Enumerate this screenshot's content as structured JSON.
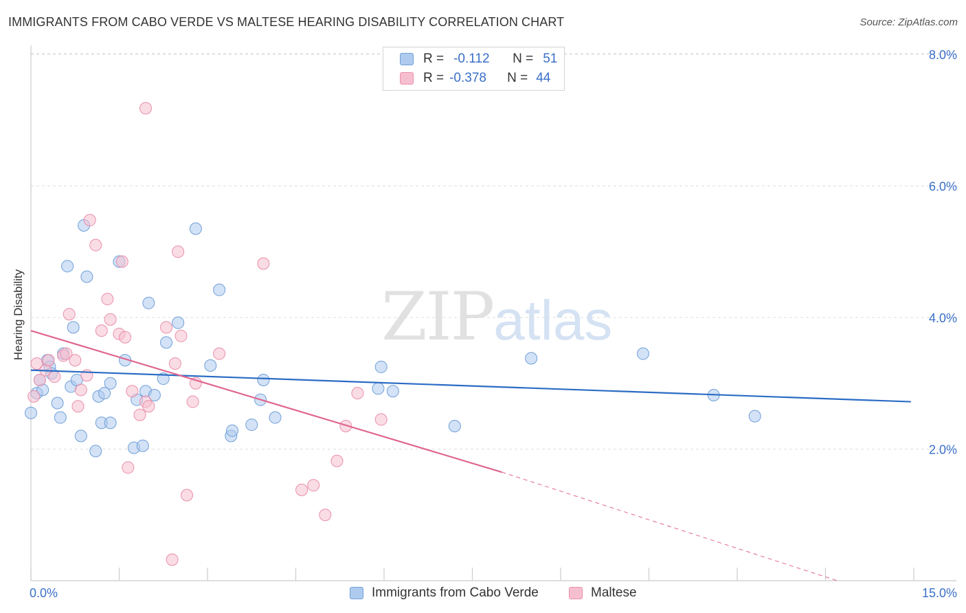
{
  "header": {
    "title": "IMMIGRANTS FROM CABO VERDE VS MALTESE HEARING DISABILITY CORRELATION CHART",
    "source": "Source: ZipAtlas.com"
  },
  "legend": {
    "rows": [
      {
        "r_label": "R =",
        "r_value": "-0.112",
        "n_label": "N =",
        "n_value": "51"
      },
      {
        "r_label": "R =",
        "r_value": "-0.378",
        "n_label": "N =",
        "n_value": "44"
      }
    ]
  },
  "watermark": {
    "zip": "ZIP",
    "atlas": "atlas"
  },
  "colors": {
    "blue_fill": "#aecbef",
    "blue_stroke": "#6f9fd8",
    "blue_line": "#2a6cc4",
    "pink_fill": "#f6bfd0",
    "pink_stroke": "#e98faa",
    "pink_line": "#e0668f",
    "tick_label": "#3a6fc8",
    "grid": "#dddddd"
  },
  "chart_data": {
    "type": "scatter",
    "title": "IMMIGRANTS FROM CABO VERDE VS MALTESE HEARING DISABILITY CORRELATION CHART",
    "xlabel": "",
    "ylabel": "Hearing Disability",
    "xlim": [
      0,
      15
    ],
    "ylim": [
      0,
      8.3
    ],
    "x_tick_labels": [
      "0.0%",
      "15.0%"
    ],
    "y_ticks": [
      2,
      4,
      6,
      8
    ],
    "y_tick_labels": [
      "2.0%",
      "4.0%",
      "6.0%",
      "8.0%"
    ],
    "grid": true,
    "legend_position": "top-center",
    "series": [
      {
        "name": "Immigrants from Cabo Verde",
        "color": "#aecbef",
        "r": -0.112,
        "n": 51,
        "trend": {
          "x": [
            0.0,
            14.95
          ],
          "y": [
            3.2,
            2.72
          ]
        },
        "points": [
          [
            0.0,
            2.55
          ],
          [
            0.1,
            2.85
          ],
          [
            0.15,
            3.05
          ],
          [
            0.2,
            2.9
          ],
          [
            0.28,
            3.35
          ],
          [
            0.32,
            3.25
          ],
          [
            0.35,
            3.15
          ],
          [
            0.45,
            2.7
          ],
          [
            0.5,
            2.48
          ],
          [
            0.55,
            3.45
          ],
          [
            0.62,
            4.78
          ],
          [
            0.68,
            2.95
          ],
          [
            0.72,
            3.85
          ],
          [
            0.78,
            3.05
          ],
          [
            0.85,
            2.2
          ],
          [
            0.9,
            5.4
          ],
          [
            0.95,
            4.62
          ],
          [
            1.1,
            1.97
          ],
          [
            1.15,
            2.8
          ],
          [
            1.2,
            2.4
          ],
          [
            1.25,
            2.85
          ],
          [
            1.35,
            2.4
          ],
          [
            1.35,
            3.0
          ],
          [
            1.5,
            4.85
          ],
          [
            1.6,
            3.35
          ],
          [
            1.75,
            2.02
          ],
          [
            1.8,
            2.75
          ],
          [
            1.9,
            2.05
          ],
          [
            1.95,
            2.88
          ],
          [
            2.0,
            4.22
          ],
          [
            2.1,
            2.82
          ],
          [
            2.25,
            3.07
          ],
          [
            2.3,
            3.62
          ],
          [
            2.5,
            3.92
          ],
          [
            2.8,
            5.35
          ],
          [
            3.05,
            3.27
          ],
          [
            3.2,
            4.42
          ],
          [
            3.4,
            2.2
          ],
          [
            3.42,
            2.28
          ],
          [
            3.75,
            2.37
          ],
          [
            3.9,
            2.75
          ],
          [
            3.95,
            3.05
          ],
          [
            4.15,
            2.48
          ],
          [
            5.9,
            2.92
          ],
          [
            5.95,
            3.25
          ],
          [
            6.15,
            2.88
          ],
          [
            7.2,
            2.35
          ],
          [
            8.5,
            3.38
          ],
          [
            10.4,
            3.45
          ],
          [
            11.6,
            2.82
          ],
          [
            12.3,
            2.5
          ]
        ]
      },
      {
        "name": "Maltese",
        "color": "#f6bfd0",
        "r": -0.378,
        "n": 44,
        "trend": {
          "x": [
            0.0,
            8.0
          ],
          "y": [
            3.8,
            1.65
          ]
        },
        "trend_dashed": {
          "x": [
            8.0,
            13.7
          ],
          "y": [
            1.65,
            0.0
          ]
        },
        "points": [
          [
            0.05,
            2.8
          ],
          [
            0.1,
            3.3
          ],
          [
            0.15,
            3.05
          ],
          [
            0.25,
            3.2
          ],
          [
            0.3,
            3.35
          ],
          [
            0.4,
            3.1
          ],
          [
            0.55,
            3.42
          ],
          [
            0.6,
            3.45
          ],
          [
            0.65,
            4.05
          ],
          [
            0.75,
            3.35
          ],
          [
            0.8,
            2.65
          ],
          [
            0.85,
            2.9
          ],
          [
            0.95,
            3.12
          ],
          [
            1.0,
            5.48
          ],
          [
            1.1,
            5.1
          ],
          [
            1.2,
            3.8
          ],
          [
            1.3,
            4.28
          ],
          [
            1.35,
            3.97
          ],
          [
            1.5,
            3.75
          ],
          [
            1.55,
            4.85
          ],
          [
            1.6,
            3.7
          ],
          [
            1.65,
            1.72
          ],
          [
            1.72,
            2.88
          ],
          [
            1.85,
            2.52
          ],
          [
            1.95,
            2.72
          ],
          [
            2.0,
            2.65
          ],
          [
            2.3,
            3.85
          ],
          [
            2.45,
            3.3
          ],
          [
            2.5,
            5.0
          ],
          [
            2.55,
            3.72
          ],
          [
            2.65,
            1.3
          ],
          [
            2.75,
            2.72
          ],
          [
            2.8,
            3.0
          ],
          [
            3.2,
            3.45
          ],
          [
            3.95,
            4.82
          ],
          [
            4.6,
            1.38
          ],
          [
            4.8,
            1.45
          ],
          [
            5.0,
            1.0
          ],
          [
            5.2,
            1.82
          ],
          [
            5.35,
            2.35
          ],
          [
            5.55,
            2.85
          ],
          [
            5.95,
            2.45
          ],
          [
            2.4,
            0.32
          ],
          [
            1.95,
            7.18
          ]
        ]
      }
    ]
  },
  "bottom_legend": {
    "items": [
      {
        "label": "Immigrants from Cabo Verde"
      },
      {
        "label": "Maltese"
      }
    ]
  }
}
